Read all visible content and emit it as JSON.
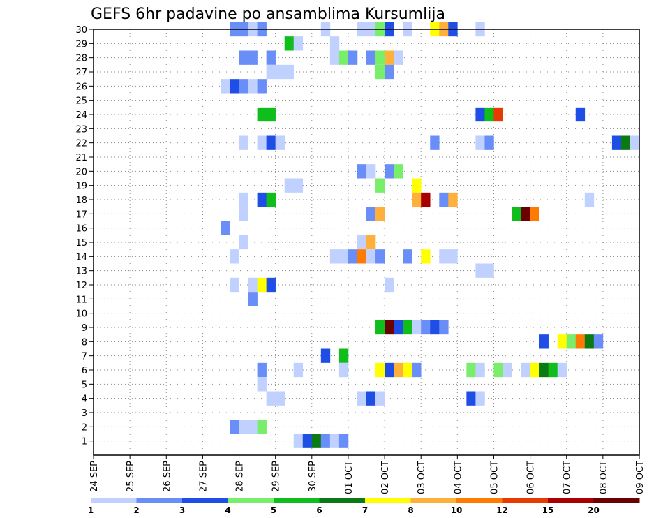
{
  "chart_data": {
    "type": "heatmap",
    "title": "GEFS 6hr padavine po ansamblima Kursumlija",
    "xlabel": "",
    "ylabel": "",
    "x_tick_labels": [
      "24 SEP",
      "25 SEP",
      "26 SEP",
      "27 SEP",
      "28 SEP",
      "29 SEP",
      "30 SEP",
      "01 OCT",
      "02 OCT",
      "03 OCT",
      "04 OCT",
      "05 OCT",
      "06 OCT",
      "07 OCT",
      "08 OCT",
      "09 OCT"
    ],
    "x_range_days": [
      0,
      15
    ],
    "x_step_hours": 6,
    "y_tick_labels": [
      "1",
      "2",
      "3",
      "4",
      "5",
      "6",
      "7",
      "8",
      "9",
      "10",
      "11",
      "12",
      "13",
      "14",
      "15",
      "16",
      "17",
      "18",
      "19",
      "20",
      "21",
      "22",
      "23",
      "24",
      "25",
      "26",
      "27",
      "28",
      "29",
      "30"
    ],
    "y_range": [
      0,
      30
    ],
    "grid": "dotted",
    "legend": {
      "placement": "bottom",
      "colors": [
        "#c0d0ff",
        "#6a8ef8",
        "#1f4ee6",
        "#78ee6a",
        "#0fbe1a",
        "#0b7a14",
        "#ffff00",
        "#ffb03a",
        "#ff7a00",
        "#e83a00",
        "#a80000",
        "#6a0000"
      ],
      "labels": [
        "1",
        "2",
        "3",
        "4",
        "5",
        "6",
        "7",
        "8",
        "10",
        "12",
        "15",
        "20"
      ],
      "thresholds": [
        1,
        2,
        3,
        4,
        5,
        6,
        7,
        8,
        10,
        12,
        15,
        20
      ]
    },
    "category_colors": {
      "1": "#c0d0ff",
      "2": "#6a8ef8",
      "3": "#1f4ee6",
      "4": "#78ee6a",
      "5": "#0fbe1a",
      "6": "#0b7a14",
      "7": "#ffff00",
      "8": "#ffb03a",
      "10": "#ff7a00",
      "12": "#e83a00",
      "15": "#a80000",
      "20": "#6a0000"
    },
    "cells_note": "each cell: [member, step index (6h steps from 24 SEP 00z), precipitation class]",
    "cells": [
      [
        30,
        15,
        2
      ],
      [
        30,
        16,
        2
      ],
      [
        30,
        17,
        1
      ],
      [
        30,
        18,
        2
      ],
      [
        30,
        25,
        1
      ],
      [
        30,
        29,
        1
      ],
      [
        30,
        30,
        1
      ],
      [
        30,
        31,
        4
      ],
      [
        30,
        32,
        3
      ],
      [
        30,
        34,
        1
      ],
      [
        30,
        37,
        7
      ],
      [
        30,
        38,
        8
      ],
      [
        30,
        39,
        3
      ],
      [
        30,
        42,
        1
      ],
      [
        29,
        21,
        5
      ],
      [
        29,
        22,
        1
      ],
      [
        29,
        26,
        1
      ],
      [
        28,
        16,
        2
      ],
      [
        28,
        17,
        2
      ],
      [
        28,
        19,
        2
      ],
      [
        28,
        26,
        1
      ],
      [
        28,
        27,
        4
      ],
      [
        28,
        28,
        2
      ],
      [
        28,
        30,
        2
      ],
      [
        28,
        31,
        4
      ],
      [
        28,
        32,
        8
      ],
      [
        28,
        33,
        1
      ],
      [
        27,
        19,
        1
      ],
      [
        27,
        20,
        1
      ],
      [
        27,
        21,
        1
      ],
      [
        27,
        31,
        4
      ],
      [
        27,
        32,
        2
      ],
      [
        26,
        14,
        1
      ],
      [
        26,
        15,
        3
      ],
      [
        26,
        16,
        2
      ],
      [
        26,
        17,
        1
      ],
      [
        26,
        18,
        2
      ],
      [
        24,
        18,
        5
      ],
      [
        24,
        19,
        5
      ],
      [
        24,
        42,
        3
      ],
      [
        24,
        43,
        5
      ],
      [
        24,
        44,
        12
      ],
      [
        24,
        53,
        3
      ],
      [
        22,
        16,
        1
      ],
      [
        22,
        18,
        1
      ],
      [
        22,
        19,
        3
      ],
      [
        22,
        20,
        1
      ],
      [
        22,
        37,
        2
      ],
      [
        22,
        42,
        1
      ],
      [
        22,
        43,
        2
      ],
      [
        22,
        57,
        3
      ],
      [
        22,
        58,
        6
      ],
      [
        22,
        59,
        1
      ],
      [
        20,
        29,
        2
      ],
      [
        20,
        30,
        1
      ],
      [
        20,
        32,
        2
      ],
      [
        20,
        33,
        4
      ],
      [
        19,
        21,
        1
      ],
      [
        19,
        22,
        1
      ],
      [
        19,
        31,
        4
      ],
      [
        19,
        35,
        7
      ],
      [
        18,
        16,
        1
      ],
      [
        18,
        18,
        3
      ],
      [
        18,
        19,
        5
      ],
      [
        18,
        35,
        8
      ],
      [
        18,
        36,
        15
      ],
      [
        18,
        38,
        2
      ],
      [
        18,
        39,
        8
      ],
      [
        18,
        54,
        1
      ],
      [
        17,
        16,
        1
      ],
      [
        17,
        30,
        2
      ],
      [
        17,
        31,
        8
      ],
      [
        17,
        46,
        5
      ],
      [
        17,
        47,
        20
      ],
      [
        17,
        48,
        10
      ],
      [
        16,
        14,
        2
      ],
      [
        15,
        16,
        1
      ],
      [
        15,
        29,
        1
      ],
      [
        15,
        30,
        8
      ],
      [
        14,
        15,
        1
      ],
      [
        14,
        26,
        1
      ],
      [
        14,
        27,
        1
      ],
      [
        14,
        28,
        2
      ],
      [
        14,
        29,
        10
      ],
      [
        14,
        30,
        1
      ],
      [
        14,
        31,
        2
      ],
      [
        14,
        34,
        2
      ],
      [
        14,
        36,
        7
      ],
      [
        14,
        38,
        1
      ],
      [
        14,
        39,
        1
      ],
      [
        13,
        42,
        1
      ],
      [
        13,
        43,
        1
      ],
      [
        12,
        15,
        1
      ],
      [
        12,
        17,
        1
      ],
      [
        12,
        18,
        7
      ],
      [
        12,
        19,
        3
      ],
      [
        12,
        32,
        1
      ],
      [
        11,
        17,
        2
      ],
      [
        9,
        31,
        5
      ],
      [
        9,
        32,
        20
      ],
      [
        9,
        33,
        3
      ],
      [
        9,
        34,
        5
      ],
      [
        9,
        35,
        1
      ],
      [
        9,
        36,
        2
      ],
      [
        9,
        37,
        3
      ],
      [
        9,
        38,
        2
      ],
      [
        8,
        49,
        3
      ],
      [
        8,
        51,
        7
      ],
      [
        8,
        52,
        4
      ],
      [
        8,
        53,
        10
      ],
      [
        8,
        54,
        6
      ],
      [
        8,
        55,
        2
      ],
      [
        7,
        25,
        3
      ],
      [
        7,
        27,
        5
      ],
      [
        6,
        18,
        2
      ],
      [
        6,
        22,
        1
      ],
      [
        6,
        27,
        1
      ],
      [
        6,
        31,
        7
      ],
      [
        6,
        32,
        3
      ],
      [
        6,
        33,
        8
      ],
      [
        6,
        34,
        7
      ],
      [
        6,
        35,
        2
      ],
      [
        6,
        41,
        4
      ],
      [
        6,
        42,
        1
      ],
      [
        6,
        44,
        4
      ],
      [
        6,
        45,
        1
      ],
      [
        6,
        47,
        1
      ],
      [
        6,
        48,
        7
      ],
      [
        6,
        49,
        6
      ],
      [
        6,
        50,
        5
      ],
      [
        6,
        51,
        1
      ],
      [
        5,
        18,
        1
      ],
      [
        4,
        19,
        1
      ],
      [
        4,
        20,
        1
      ],
      [
        4,
        29,
        1
      ],
      [
        4,
        30,
        3
      ],
      [
        4,
        31,
        1
      ],
      [
        4,
        41,
        3
      ],
      [
        4,
        42,
        1
      ],
      [
        2,
        15,
        2
      ],
      [
        2,
        16,
        1
      ],
      [
        2,
        17,
        1
      ],
      [
        2,
        18,
        4
      ],
      [
        1,
        22,
        1
      ],
      [
        1,
        23,
        3
      ],
      [
        1,
        24,
        6
      ],
      [
        1,
        25,
        2
      ],
      [
        1,
        26,
        1
      ],
      [
        1,
        27,
        2
      ]
    ]
  }
}
